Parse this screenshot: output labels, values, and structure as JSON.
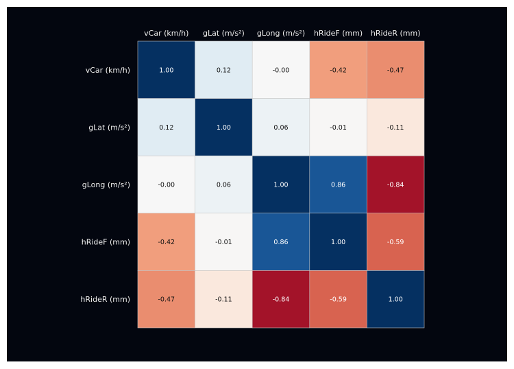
{
  "chart_data": {
    "type": "heatmap",
    "title": "",
    "x_labels": [
      "vCar (km/h)",
      "gLat (m/s²)",
      "gLong (m/s²)",
      "hRideF (mm)",
      "hRideR (mm)"
    ],
    "y_labels": [
      "vCar (km/h)",
      "gLat (m/s²)",
      "gLong (m/s²)",
      "hRideF (mm)",
      "hRideR (mm)"
    ],
    "values": [
      [
        1.0,
        0.12,
        -0.0,
        -0.42,
        -0.47
      ],
      [
        0.12,
        1.0,
        0.06,
        -0.01,
        -0.11
      ],
      [
        -0.0,
        0.06,
        1.0,
        0.86,
        -0.84
      ],
      [
        -0.42,
        -0.01,
        0.86,
        1.0,
        -0.59
      ],
      [
        -0.47,
        -0.11,
        -0.84,
        -0.59,
        1.0
      ]
    ],
    "value_labels": [
      [
        "1.00",
        "0.12",
        "-0.00",
        "-0.42",
        "-0.47"
      ],
      [
        "0.12",
        "1.00",
        "0.06",
        "-0.01",
        "-0.11"
      ],
      [
        "-0.00",
        "0.06",
        "1.00",
        "0.86",
        "-0.84"
      ],
      [
        "-0.42",
        "-0.01",
        "0.86",
        "1.00",
        "-0.59"
      ],
      [
        "-0.47",
        "-0.11",
        "-0.84",
        "-0.59",
        "1.00"
      ]
    ],
    "colormap": "RdBu",
    "vmin": -1,
    "vmax": 1,
    "x_axis_position": "top",
    "background_color": "#03060f"
  }
}
